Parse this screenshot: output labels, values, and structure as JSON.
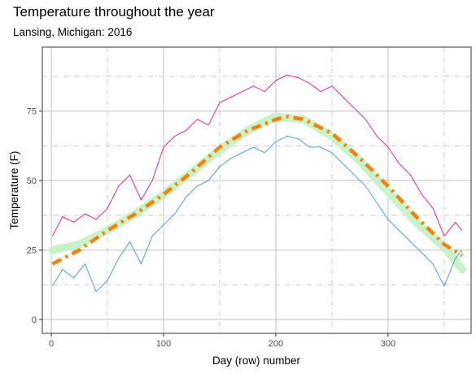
{
  "chart_data": {
    "type": "line",
    "title": "Temperature throughout the year",
    "subtitle": "Lansing, Michigan: 2016",
    "xlabel": "Day (row) number",
    "ylabel": "Temperature (F)",
    "xlim": [
      -8,
      374
    ],
    "ylim": [
      -5,
      98
    ],
    "x_ticks": [
      0,
      100,
      200,
      300
    ],
    "y_ticks": [
      0,
      25,
      50,
      75
    ],
    "x_ticks_major_dashed": [
      50,
      150,
      250,
      350
    ],
    "y_ticks_major_dashed": [
      12.5,
      37.5,
      62.5,
      87.5
    ],
    "grid": true,
    "legend": "none",
    "colors": {
      "high": "#e7298a",
      "low": "#4a9fd4",
      "smooth_band": "#c8f2c8",
      "trend": "#ff7f00",
      "grid_major": "#c0c0c0",
      "grid_minor": "#c8c8c8",
      "panel_border": "#333333"
    },
    "series": [
      {
        "role": "high",
        "x": [
          1,
          10,
          20,
          30,
          40,
          50,
          60,
          70,
          80,
          90,
          100,
          110,
          120,
          130,
          140,
          150,
          160,
          170,
          180,
          190,
          200,
          210,
          220,
          230,
          240,
          250,
          260,
          270,
          280,
          290,
          300,
          310,
          320,
          330,
          340,
          350,
          360,
          366
        ],
        "values": [
          30,
          37,
          35,
          38,
          36,
          40,
          48,
          52,
          43,
          50,
          62,
          66,
          68,
          72,
          70,
          78,
          80,
          82,
          84,
          82,
          86,
          88,
          87,
          85,
          82,
          84,
          80,
          76,
          72,
          66,
          62,
          56,
          52,
          45,
          40,
          30,
          35,
          32
        ]
      },
      {
        "role": "low",
        "x": [
          1,
          10,
          20,
          30,
          40,
          50,
          60,
          70,
          80,
          90,
          100,
          110,
          120,
          130,
          140,
          150,
          160,
          170,
          180,
          190,
          200,
          210,
          220,
          230,
          240,
          250,
          260,
          270,
          280,
          290,
          300,
          310,
          320,
          330,
          340,
          350,
          360,
          366
        ],
        "values": [
          12,
          18,
          15,
          20,
          10,
          14,
          22,
          28,
          20,
          30,
          34,
          38,
          44,
          48,
          50,
          55,
          58,
          60,
          62,
          60,
          64,
          66,
          65,
          62,
          62,
          60,
          56,
          52,
          48,
          42,
          36,
          32,
          28,
          24,
          20,
          12,
          22,
          25
        ]
      },
      {
        "role": "smooth-band",
        "x": [
          1,
          25,
          50,
          75,
          100,
          125,
          150,
          175,
          200,
          225,
          250,
          275,
          300,
          325,
          350,
          366
        ],
        "values": [
          25,
          27,
          32,
          38,
          45,
          53,
          61,
          68,
          73,
          72,
          66,
          57,
          46,
          35,
          26,
          18
        ]
      },
      {
        "role": "trend",
        "x": [
          1,
          25,
          50,
          75,
          100,
          125,
          150,
          175,
          200,
          210,
          225,
          250,
          275,
          300,
          325,
          350,
          366
        ],
        "values": [
          20,
          25,
          32,
          38,
          45,
          53,
          62,
          68,
          72,
          73,
          72,
          67,
          58,
          48,
          37,
          27,
          23
        ]
      }
    ]
  }
}
